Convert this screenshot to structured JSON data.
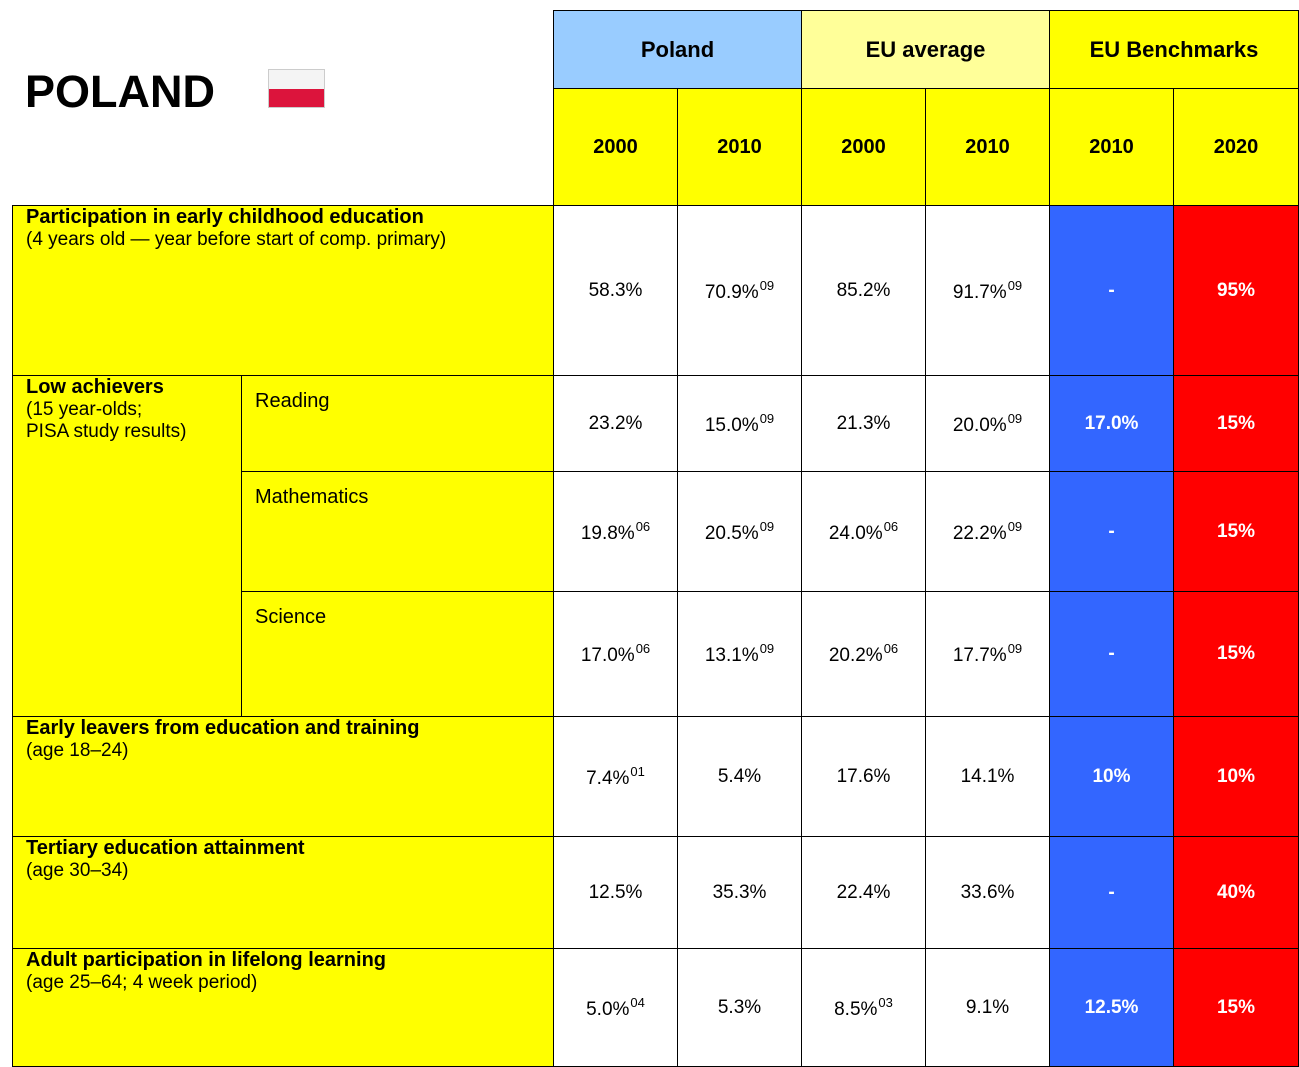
{
  "header": {
    "title": "POLAND",
    "groups": [
      "Poland",
      "EU average",
      "EU Benchmarks"
    ],
    "years": [
      "2000",
      "2010",
      "2000",
      "2010",
      "2010",
      "2020"
    ]
  },
  "rows": [
    {
      "label": "Participation in early childhood education",
      "sublabel": [
        "(4 years old — year before start of comp. primary)"
      ],
      "cells": [
        {
          "text": "58.3%"
        },
        {
          "text": "70.9%",
          "sup": "09"
        },
        {
          "text": "85.2%"
        },
        {
          "text": "91.7%",
          "sup": "09"
        },
        {
          "text": "-"
        },
        {
          "text": "95%"
        }
      ]
    },
    {
      "label": "Low achievers",
      "sublabel": [
        "(15 year-olds;",
        "PISA study results)"
      ],
      "subrows": [
        {
          "label": "Reading",
          "cells": [
            {
              "text": "23.2%"
            },
            {
              "text": "15.0%",
              "sup": "09"
            },
            {
              "text": "21.3%"
            },
            {
              "text": "20.0%",
              "sup": "09"
            },
            {
              "text": "17.0%"
            },
            {
              "text": "15%"
            }
          ]
        },
        {
          "label": "Mathematics",
          "cells": [
            {
              "text": "19.8%",
              "sup": "06"
            },
            {
              "text": "20.5%",
              "sup": "09"
            },
            {
              "text": "24.0%",
              "sup": "06"
            },
            {
              "text": "22.2%",
              "sup": "09"
            },
            {
              "text": "-"
            },
            {
              "text": "15%"
            }
          ]
        },
        {
          "label": "Science",
          "cells": [
            {
              "text": "17.0%",
              "sup": "06"
            },
            {
              "text": "13.1%",
              "sup": "09"
            },
            {
              "text": "20.2%",
              "sup": "06"
            },
            {
              "text": "17.7%",
              "sup": "09"
            },
            {
              "text": "-"
            },
            {
              "text": "15%"
            }
          ]
        }
      ]
    },
    {
      "label": "Early leavers from education and training",
      "sublabel": [
        "(age 18–24)"
      ],
      "cells": [
        {
          "text": "7.4%",
          "sup": "01"
        },
        {
          "text": "5.4%"
        },
        {
          "text": "17.6%"
        },
        {
          "text": "14.1%"
        },
        {
          "text": "10%"
        },
        {
          "text": "10%"
        }
      ]
    },
    {
      "label": "Tertiary education attainment",
      "sublabel": [
        "(age 30–34)"
      ],
      "cells": [
        {
          "text": "12.5%"
        },
        {
          "text": "35.3%"
        },
        {
          "text": "22.4%"
        },
        {
          "text": "33.6%"
        },
        {
          "text": "-"
        },
        {
          "text": "40%"
        }
      ]
    },
    {
      "label": "Adult participation in lifelong learning",
      "sublabel": [
        "(age 25–64; 4 week period)"
      ],
      "cells": [
        {
          "text": "5.0%",
          "sup": "04"
        },
        {
          "text": "5.3%"
        },
        {
          "text": "8.5%",
          "sup": "03"
        },
        {
          "text": "9.1%"
        },
        {
          "text": "12.5%"
        },
        {
          "text": "15%"
        }
      ]
    }
  ]
}
